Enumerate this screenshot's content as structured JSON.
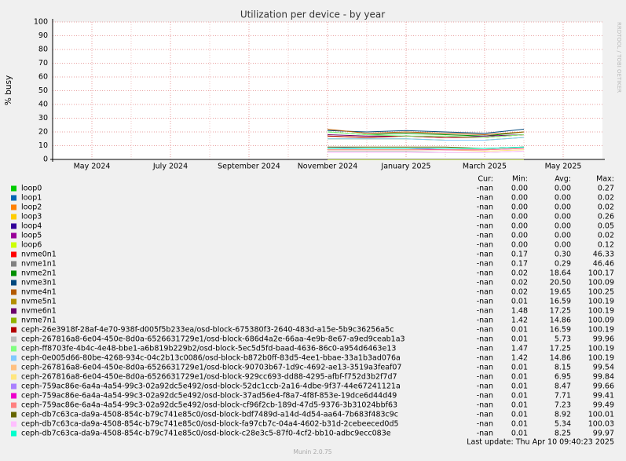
{
  "chart_data": {
    "type": "line",
    "title": "Utilization per device - by year",
    "ylabel": "% busy",
    "side_note": "RRDTOOL / TOBI OETIKER",
    "x": [
      "2024-11",
      "2024-12",
      "2025-01",
      "2025-02",
      "2025-03",
      "2025-04"
    ],
    "xlim": [
      "2024-04",
      "2025-06"
    ],
    "xticks": [
      {
        "value": "2024-05",
        "label": "May 2024"
      },
      {
        "value": "2024-07",
        "label": "July 2024"
      },
      {
        "value": "2024-09",
        "label": "September 2024"
      },
      {
        "value": "2024-11",
        "label": "November 2024"
      },
      {
        "value": "2025-01",
        "label": "January 2025"
      },
      {
        "value": "2025-03",
        "label": "March 2025"
      },
      {
        "value": "2025-05",
        "label": "May 2025"
      }
    ],
    "ylim": [
      0,
      100
    ],
    "yticks": [
      0,
      10,
      20,
      30,
      40,
      50,
      60,
      70,
      80,
      90,
      100
    ],
    "grid": true,
    "stat_headers": [
      "Cur:",
      "Min:",
      "Avg:",
      "Max:"
    ],
    "series": [
      {
        "name": "loop0",
        "color": "#00CC00",
        "values": [
          0,
          0,
          0,
          0,
          0,
          0
        ],
        "stats": [
          "-nan",
          "0.00",
          "0.00",
          "0.27"
        ]
      },
      {
        "name": "loop1",
        "color": "#0066B3",
        "values": [
          0,
          0,
          0,
          0,
          0,
          0
        ],
        "stats": [
          "-nan",
          "0.00",
          "0.00",
          "0.02"
        ]
      },
      {
        "name": "loop2",
        "color": "#FF8000",
        "values": [
          0,
          0,
          0,
          0,
          0,
          0
        ],
        "stats": [
          "-nan",
          "0.00",
          "0.00",
          "0.02"
        ]
      },
      {
        "name": "loop3",
        "color": "#FFCC00",
        "values": [
          0,
          0,
          0,
          0,
          0,
          0
        ],
        "stats": [
          "-nan",
          "0.00",
          "0.00",
          "0.26"
        ]
      },
      {
        "name": "loop4",
        "color": "#330099",
        "values": [
          0,
          0,
          0,
          0,
          0,
          0
        ],
        "stats": [
          "-nan",
          "0.00",
          "0.00",
          "0.05"
        ]
      },
      {
        "name": "loop5",
        "color": "#990099",
        "values": [
          0,
          0,
          0,
          0,
          0,
          0
        ],
        "stats": [
          "-nan",
          "0.00",
          "0.00",
          "0.02"
        ]
      },
      {
        "name": "loop6",
        "color": "#CCFF00",
        "values": [
          0,
          0,
          0,
          0,
          0,
          0
        ],
        "stats": [
          "-nan",
          "0.00",
          "0.00",
          "0.12"
        ]
      },
      {
        "name": "nvme0n1",
        "color": "#FF0000",
        "values": [
          0.3,
          0.3,
          0.3,
          0.3,
          0.3,
          0.3
        ],
        "stats": [
          "-nan",
          "0.17",
          "0.30",
          "46.33"
        ]
      },
      {
        "name": "nvme1n1",
        "color": "#808080",
        "values": [
          0.3,
          0.3,
          0.3,
          0.3,
          0.3,
          0.3
        ],
        "stats": [
          "-nan",
          "0.17",
          "0.29",
          "46.46"
        ]
      },
      {
        "name": "nvme2n1",
        "color": "#008F00",
        "values": [
          20,
          18,
          19,
          18,
          17,
          20
        ],
        "stats": [
          "-nan",
          "0.02",
          "18.64",
          "100.17"
        ]
      },
      {
        "name": "nvme3n1",
        "color": "#00487D",
        "values": [
          21,
          20,
          21,
          20,
          19,
          22
        ],
        "stats": [
          "-nan",
          "0.02",
          "20.50",
          "100.09"
        ]
      },
      {
        "name": "nvme4n1",
        "color": "#B35A00",
        "values": [
          22,
          19,
          20,
          19,
          18,
          20
        ],
        "stats": [
          "-nan",
          "0.02",
          "19.65",
          "100.25"
        ]
      },
      {
        "name": "nvme5n1",
        "color": "#B38F00",
        "values": [
          17,
          16,
          17,
          16,
          16,
          18
        ],
        "stats": [
          "-nan",
          "0.01",
          "16.59",
          "100.19"
        ]
      },
      {
        "name": "nvme6n1",
        "color": "#6B006B",
        "values": [
          18,
          17,
          17,
          16,
          17,
          18
        ],
        "stats": [
          "-nan",
          "1.48",
          "17.25",
          "100.19"
        ]
      },
      {
        "name": "nvme7n1",
        "color": "#8FB300",
        "values": [
          15,
          15,
          15,
          14,
          14,
          16
        ],
        "stats": [
          "-nan",
          "1.42",
          "14.86",
          "100.09"
        ]
      },
      {
        "name": "ceph-26e3918f-28af-4e70-938f-d005f5b233ea/osd-block-675380f3-2640-483d-a15e-5b9c36256a5c",
        "color": "#B30000",
        "values": [
          17,
          16,
          17,
          16,
          16,
          18
        ],
        "stats": [
          "-nan",
          "0.01",
          "16.59",
          "100.19"
        ]
      },
      {
        "name": "ceph-267816a8-6e04-450e-8d0a-6526631729e1/osd-block-686d4a2e-66aa-4e9b-8e67-a9ed9ceab1a3",
        "color": "#BEBEBE",
        "values": [
          6,
          6,
          6,
          5,
          5,
          6
        ],
        "stats": [
          "-nan",
          "0.01",
          "5.73",
          "99.96"
        ]
      },
      {
        "name": "ceph-ff8703fe-4b4c-4e48-bbe1-a6b819b229b2/osd-block-5ec5d5fd-baad-4636-86c0-a954d6463e13",
        "color": "#80FF80",
        "values": [
          20,
          18,
          17,
          17,
          16,
          18
        ],
        "stats": [
          "-nan",
          "1.47",
          "17.25",
          "100.19"
        ]
      },
      {
        "name": "ceph-0e005d66-80be-4268-934c-04c2b13c0086/osd-block-b872b0ff-83d5-4ee1-bbae-33a1b3ad076a",
        "color": "#80C9FF",
        "values": [
          15,
          15,
          15,
          14,
          14,
          16
        ],
        "stats": [
          "-nan",
          "1.42",
          "14.86",
          "100.19"
        ]
      },
      {
        "name": "ceph-267816a8-6e04-450e-8d0a-6526631729e1/osd-block-90703b67-1d9c-4692-ae13-3519a3feaf07",
        "color": "#FFC080",
        "values": [
          8,
          8,
          8,
          8,
          8,
          9
        ],
        "stats": [
          "-nan",
          "0.01",
          "8.15",
          "99.54"
        ]
      },
      {
        "name": "ceph-267816a8-6e04-450e-8d0a-6526631729e1/osd-block-929cc693-dd88-4295-afbf-f752d3b2f7d7",
        "color": "#FFE680",
        "values": [
          7,
          7,
          7,
          7,
          6,
          7
        ],
        "stats": [
          "-nan",
          "0.01",
          "6.95",
          "99.84"
        ]
      },
      {
        "name": "ceph-759ac86e-6a4a-4a54-99c3-02a92dc5e492/osd-block-52dc1ccb-2a16-4dbe-9f37-44e67241121a",
        "color": "#AA80FF",
        "values": [
          9,
          8,
          8,
          8,
          8,
          9
        ],
        "stats": [
          "-nan",
          "0.01",
          "8.47",
          "99.66"
        ]
      },
      {
        "name": "ceph-759ac86e-6a4a-4a54-99c3-02a92dc5e492/osd-block-37ad56e4-f8a7-4f8f-853e-19dce6d44d49",
        "color": "#EE00CC",
        "values": [
          8,
          8,
          8,
          7,
          7,
          8
        ],
        "stats": [
          "-nan",
          "0.01",
          "7.71",
          "99.41"
        ]
      },
      {
        "name": "ceph-759ac86e-6a4a-4a54-99c3-02a92dc5e492/osd-block-cf96f2cb-189d-47d5-9376-3b31024bbf63",
        "color": "#FF8080",
        "values": [
          7,
          7,
          7,
          7,
          7,
          8
        ],
        "stats": [
          "-nan",
          "0.01",
          "7.23",
          "99.49"
        ]
      },
      {
        "name": "ceph-db7c63ca-da9a-4508-854c-b79c741e85c0/osd-block-bdf7489d-a14d-4d54-aa64-7b683f483c9c",
        "color": "#666600",
        "values": [
          9,
          9,
          9,
          9,
          8,
          9
        ],
        "stats": [
          "-nan",
          "0.01",
          "8.92",
          "100.01"
        ]
      },
      {
        "name": "ceph-db7c63ca-da9a-4508-854c-b79c741e85c0/osd-block-fa97cb7c-04a4-4602-b31d-2cebeeced0d5",
        "color": "#FFBFFF",
        "values": [
          5,
          5,
          5,
          5,
          5,
          6
        ],
        "stats": [
          "-nan",
          "0.01",
          "5.34",
          "100.03"
        ]
      },
      {
        "name": "ceph-db7c63ca-da9a-4508-854c-b79c741e85c0/osd-block-c28e3c5-87f0-4cf2-bb10-adbc9ecc083e",
        "color": "#00FFCC",
        "values": [
          8,
          8,
          8,
          8,
          8,
          9
        ],
        "stats": [
          "-nan",
          "0.01",
          "8.25",
          "99.97"
        ]
      }
    ],
    "last_update": "Last update: Thu Apr 10 09:40:23 2025",
    "footer": "Munin 2.0.75"
  }
}
